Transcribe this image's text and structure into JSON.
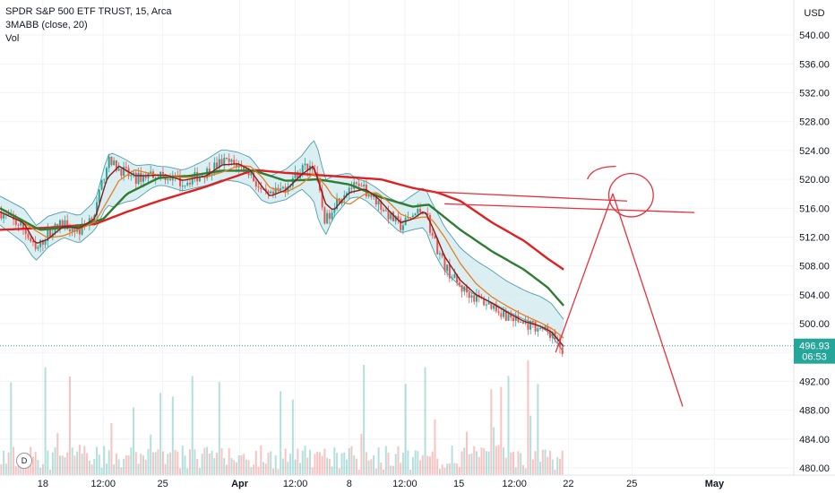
{
  "symbol": {
    "title": "SPDR S&P 500 ETF TRUST, 15, Arca",
    "indicator": "3MABB (close, 20)",
    "volume_label": "Vol",
    "currency": "USD",
    "dividend_badge": "D"
  },
  "price_label": {
    "price": "496.93",
    "countdown": "06:53"
  },
  "colors": {
    "up_candle": "#26a69a",
    "down_candle": "#ef5350",
    "ma_fast": "#8b1a1a",
    "ma_mid": "#e67e22",
    "ma_green": "#2e7d32",
    "ma_red": "#e02020",
    "band_fill": "#cfe9ee",
    "band_line": "#4a9eae",
    "drawing": "#e8303a",
    "price_badge": "#26a69a"
  },
  "chart_data": {
    "type": "candlestick",
    "y_axis_ticks": [
      "540.00",
      "536.00",
      "532.00",
      "528.00",
      "524.00",
      "520.00",
      "516.00",
      "512.00",
      "508.00",
      "504.00",
      "500.00",
      "496.00",
      "492.00",
      "488.00",
      "484.00",
      "480.00"
    ],
    "ylim": [
      479,
      543
    ],
    "x_axis_labels": [
      "18",
      "12:00",
      "25",
      "Apr",
      "12:00",
      "8",
      "12:00",
      "15",
      "12:00",
      "22",
      "25",
      "May"
    ],
    "x_label_positions": [
      0.054,
      0.13,
      0.205,
      0.302,
      0.372,
      0.44,
      0.51,
      0.578,
      0.648,
      0.716,
      0.796,
      0.9
    ],
    "close_path": [
      [
        0.0,
        515.5
      ],
      [
        0.03,
        513.2
      ],
      [
        0.045,
        510.0
      ],
      [
        0.06,
        512.5
      ],
      [
        0.08,
        514.0
      ],
      [
        0.1,
        512.8
      ],
      [
        0.12,
        515.5
      ],
      [
        0.135,
        522.5
      ],
      [
        0.15,
        521.5
      ],
      [
        0.17,
        520.0
      ],
      [
        0.19,
        520.8
      ],
      [
        0.21,
        520.5
      ],
      [
        0.23,
        519.5
      ],
      [
        0.26,
        521.0
      ],
      [
        0.28,
        522.5
      ],
      [
        0.3,
        522.0
      ],
      [
        0.315,
        521.0
      ],
      [
        0.33,
        518.0
      ],
      [
        0.34,
        517.5
      ],
      [
        0.36,
        519.0
      ],
      [
        0.38,
        521.5
      ],
      [
        0.395,
        522.0
      ],
      [
        0.41,
        514.0
      ],
      [
        0.42,
        516.5
      ],
      [
        0.44,
        519.0
      ],
      [
        0.46,
        518.5
      ],
      [
        0.475,
        517.0
      ],
      [
        0.49,
        515.0
      ],
      [
        0.505,
        513.5
      ],
      [
        0.52,
        515.0
      ],
      [
        0.535,
        516.0
      ],
      [
        0.545,
        512.0
      ],
      [
        0.56,
        508.0
      ],
      [
        0.58,
        505.0
      ],
      [
        0.6,
        503.5
      ],
      [
        0.62,
        502.5
      ],
      [
        0.64,
        501.0
      ],
      [
        0.66,
        500.0
      ],
      [
        0.68,
        499.5
      ],
      [
        0.695,
        498.5
      ],
      [
        0.71,
        496.0
      ]
    ],
    "ma_green_path": [
      [
        0.0,
        516.0
      ],
      [
        0.05,
        513.0
      ],
      [
        0.1,
        513.5
      ],
      [
        0.13,
        514.5
      ],
      [
        0.16,
        518.0
      ],
      [
        0.2,
        520.2
      ],
      [
        0.24,
        520.5
      ],
      [
        0.28,
        521.2
      ],
      [
        0.32,
        521.2
      ],
      [
        0.36,
        519.8
      ],
      [
        0.4,
        520.0
      ],
      [
        0.44,
        519.3
      ],
      [
        0.48,
        517.5
      ],
      [
        0.52,
        516.2
      ],
      [
        0.54,
        516.5
      ],
      [
        0.58,
        513.0
      ],
      [
        0.62,
        510.0
      ],
      [
        0.66,
        507.5
      ],
      [
        0.69,
        505.0
      ],
      [
        0.71,
        502.5
      ]
    ],
    "ma_red_path": [
      [
        0.0,
        513.0
      ],
      [
        0.06,
        513.3
      ],
      [
        0.12,
        513.8
      ],
      [
        0.16,
        515.5
      ],
      [
        0.2,
        517.0
      ],
      [
        0.26,
        519.0
      ],
      [
        0.32,
        521.3
      ],
      [
        0.36,
        520.9
      ],
      [
        0.4,
        520.6
      ],
      [
        0.44,
        520.3
      ],
      [
        0.48,
        520.0
      ],
      [
        0.52,
        518.8
      ],
      [
        0.55,
        518.2
      ],
      [
        0.58,
        517.0
      ],
      [
        0.62,
        514.0
      ],
      [
        0.66,
        511.5
      ],
      [
        0.69,
        509.0
      ],
      [
        0.71,
        507.5
      ]
    ],
    "band_halfwidth_path": [
      [
        0.0,
        2.0
      ],
      [
        0.04,
        2.5
      ],
      [
        0.08,
        1.8
      ],
      [
        0.12,
        2.0
      ],
      [
        0.14,
        3.8
      ],
      [
        0.17,
        2.4
      ],
      [
        0.2,
        1.3
      ],
      [
        0.24,
        1.5
      ],
      [
        0.28,
        2.1
      ],
      [
        0.31,
        2.0
      ],
      [
        0.34,
        1.9
      ],
      [
        0.38,
        2.3
      ],
      [
        0.4,
        4.8
      ],
      [
        0.42,
        2.9
      ],
      [
        0.45,
        1.2
      ],
      [
        0.49,
        1.7
      ],
      [
        0.52,
        2.4
      ],
      [
        0.55,
        3.2
      ],
      [
        0.59,
        2.5
      ],
      [
        0.63,
        2.1
      ],
      [
        0.67,
        2.0
      ],
      [
        0.71,
        2.3
      ]
    ],
    "last_price": 496.93
  },
  "drawings": {
    "horizontal_lines": [
      {
        "x1": 0.54,
        "x2": 0.79,
        "y1": 518.3,
        "y2": 517.0
      },
      {
        "x1": 0.56,
        "x2": 0.875,
        "y1": 516.6,
        "y2": 515.4
      }
    ],
    "projection": [
      [
        0.7,
        496.0
      ],
      [
        0.772,
        518.0
      ],
      [
        0.86,
        488.5
      ]
    ],
    "circle": {
      "cx": 0.795,
      "cy": 517.8,
      "rx": 0.028,
      "ry": 3.0
    },
    "arc": [
      [
        0.74,
        520.0
      ],
      [
        0.745,
        521.5
      ],
      [
        0.762,
        521.8
      ],
      [
        0.776,
        521.8
      ]
    ]
  }
}
